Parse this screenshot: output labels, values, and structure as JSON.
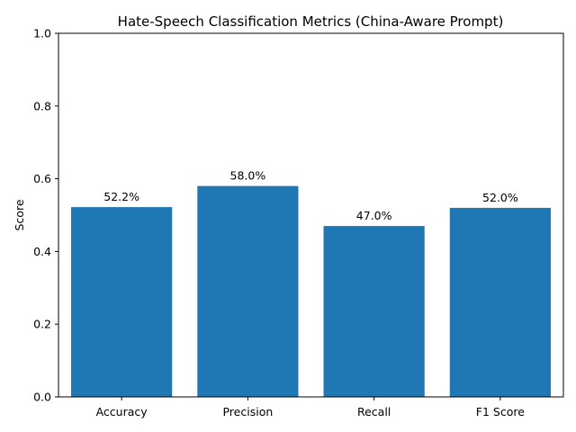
{
  "chart_data": {
    "type": "bar",
    "title": "Hate-Speech Classification Metrics (China-Aware Prompt)",
    "xlabel": "",
    "ylabel": "Score",
    "categories": [
      "Accuracy",
      "Precision",
      "Recall",
      "F1 Score"
    ],
    "values": [
      0.522,
      0.58,
      0.47,
      0.52
    ],
    "data_labels": [
      "52.2%",
      "58.0%",
      "47.0%",
      "52.0%"
    ],
    "ylim": [
      0,
      1.0
    ],
    "yticks": [
      "0.0",
      "0.2",
      "0.4",
      "0.6",
      "0.8",
      "1.0"
    ],
    "bar_color": "#1f77b4",
    "grid": false,
    "legend": "none"
  }
}
